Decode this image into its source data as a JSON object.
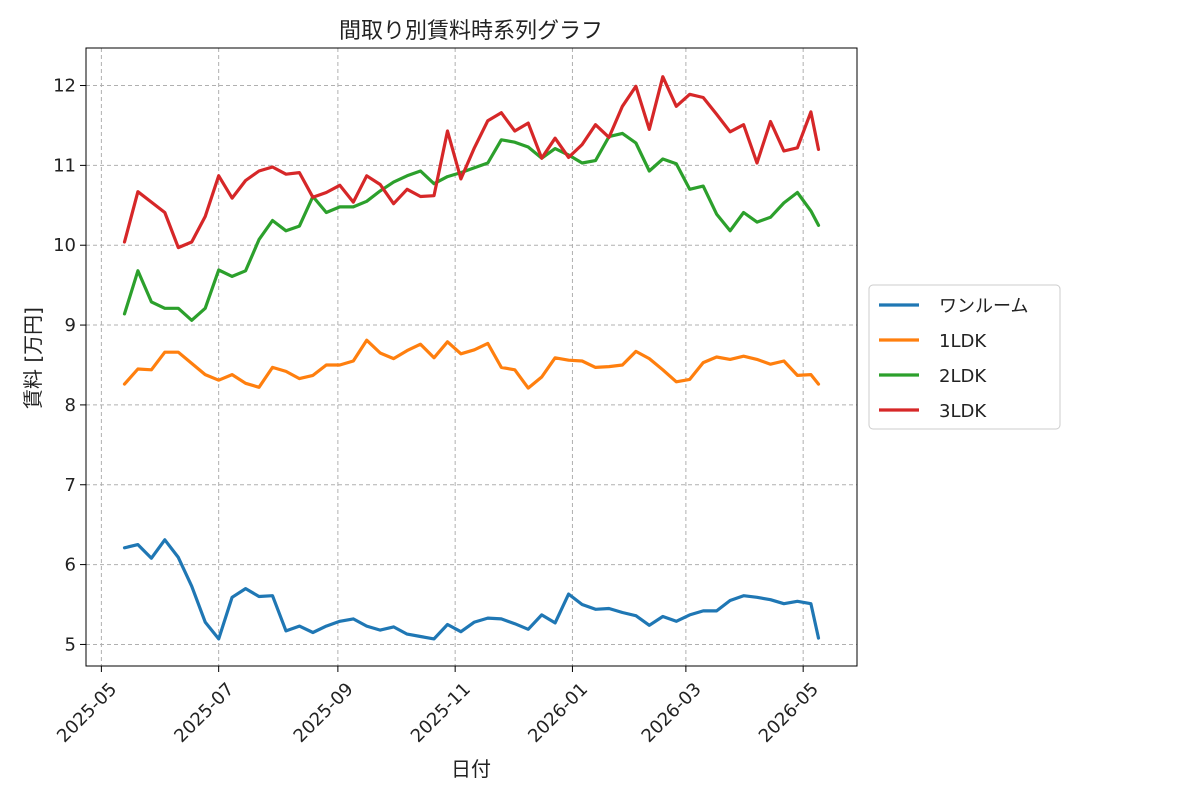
{
  "chart_data": {
    "type": "line",
    "title": "間取り別賃料時系列グラフ",
    "xlabel": "日付",
    "ylabel": "賃料 [万円]",
    "x_ticks": [
      "2025-05",
      "2025-07",
      "2025-09",
      "2025-11",
      "2026-01",
      "2026-03",
      "2026-05"
    ],
    "y_ticks": [
      "5",
      "6",
      "7",
      "8",
      "9",
      "10",
      "11",
      "12"
    ],
    "xlim": [
      "2025-04-23",
      "2026-05-29"
    ],
    "ylim": [
      4.73,
      12.47
    ],
    "grid": true,
    "legend_position": "center-right",
    "x": [
      "2025-05-13",
      "2025-05-20",
      "2025-05-27",
      "2025-06-03",
      "2025-06-10",
      "2025-06-17",
      "2025-06-24",
      "2025-07-01",
      "2025-07-08",
      "2025-07-15",
      "2025-07-22",
      "2025-07-29",
      "2025-08-05",
      "2025-08-12",
      "2025-08-19",
      "2025-08-26",
      "2025-09-02",
      "2025-09-09",
      "2025-09-16",
      "2025-09-23",
      "2025-09-30",
      "2025-10-07",
      "2025-10-14",
      "2025-10-21",
      "2025-10-28",
      "2025-11-04",
      "2025-11-11",
      "2025-11-18",
      "2025-11-25",
      "2025-12-02",
      "2025-12-09",
      "2025-12-16",
      "2025-12-23",
      "2025-12-30",
      "2026-01-06",
      "2026-01-13",
      "2026-01-20",
      "2026-01-27",
      "2026-02-03",
      "2026-02-10",
      "2026-02-17",
      "2026-02-24",
      "2026-03-03",
      "2026-03-10",
      "2026-03-17",
      "2026-03-24",
      "2026-03-31",
      "2026-04-07",
      "2026-04-14",
      "2026-04-21",
      "2026-04-28",
      "2026-05-05",
      "2026-05-09"
    ],
    "series": [
      {
        "name": "ワンルーム",
        "color": "#1f77b4",
        "values": [
          6.21,
          6.25,
          6.08,
          6.31,
          6.09,
          5.73,
          5.28,
          5.07,
          5.59,
          5.7,
          5.6,
          5.61,
          5.17,
          5.23,
          5.15,
          5.23,
          5.29,
          5.32,
          5.23,
          5.18,
          5.22,
          5.13,
          5.1,
          5.07,
          5.25,
          5.16,
          5.28,
          5.33,
          5.32,
          5.26,
          5.19,
          5.37,
          5.27,
          5.63,
          5.5,
          5.44,
          5.45,
          5.4,
          5.36,
          5.24,
          5.35,
          5.29,
          5.37,
          5.42,
          5.42,
          5.55,
          5.61,
          5.59,
          5.56,
          5.51,
          5.54,
          5.51,
          5.08
        ]
      },
      {
        "name": "1LDK",
        "color": "#ff7f0e",
        "values": [
          8.26,
          8.45,
          8.44,
          8.66,
          8.66,
          8.52,
          8.38,
          8.31,
          8.38,
          8.27,
          8.22,
          8.47,
          8.42,
          8.33,
          8.37,
          8.5,
          8.5,
          8.55,
          8.81,
          8.65,
          8.58,
          8.68,
          8.76,
          8.59,
          8.79,
          8.64,
          8.69,
          8.77,
          8.47,
          8.44,
          8.21,
          8.35,
          8.59,
          8.56,
          8.55,
          8.47,
          8.48,
          8.5,
          8.67,
          8.58,
          8.44,
          8.29,
          8.32,
          8.53,
          8.6,
          8.57,
          8.61,
          8.57,
          8.51,
          8.55,
          8.37,
          8.38,
          8.26
        ]
      },
      {
        "name": "2LDK",
        "color": "#2ca02c",
        "values": [
          9.14,
          9.68,
          9.29,
          9.21,
          9.21,
          9.06,
          9.21,
          9.69,
          9.61,
          9.68,
          10.07,
          10.31,
          10.18,
          10.24,
          10.61,
          10.41,
          10.48,
          10.48,
          10.55,
          10.68,
          10.79,
          10.87,
          10.93,
          10.77,
          10.86,
          10.91,
          10.97,
          11.03,
          11.32,
          11.29,
          11.23,
          11.09,
          11.21,
          11.13,
          11.03,
          11.06,
          11.36,
          11.4,
          11.28,
          10.93,
          11.08,
          11.02,
          10.7,
          10.74,
          10.39,
          10.18,
          10.41,
          10.29,
          10.35,
          10.53,
          10.66,
          10.43,
          10.25
        ]
      },
      {
        "name": "3LDK",
        "color": "#d62728",
        "values": [
          10.04,
          10.67,
          10.54,
          10.41,
          9.97,
          10.04,
          10.36,
          10.87,
          10.59,
          10.81,
          10.93,
          10.98,
          10.89,
          10.91,
          10.6,
          10.66,
          10.75,
          10.54,
          10.87,
          10.76,
          10.52,
          10.7,
          10.61,
          10.62,
          11.43,
          10.83,
          11.22,
          11.56,
          11.66,
          11.43,
          11.53,
          11.09,
          11.34,
          11.1,
          11.26,
          11.51,
          11.35,
          11.74,
          11.99,
          11.45,
          12.11,
          11.74,
          11.89,
          11.85,
          11.64,
          11.42,
          11.51,
          11.03,
          11.55,
          11.18,
          11.22,
          11.67,
          11.2
        ]
      }
    ]
  }
}
